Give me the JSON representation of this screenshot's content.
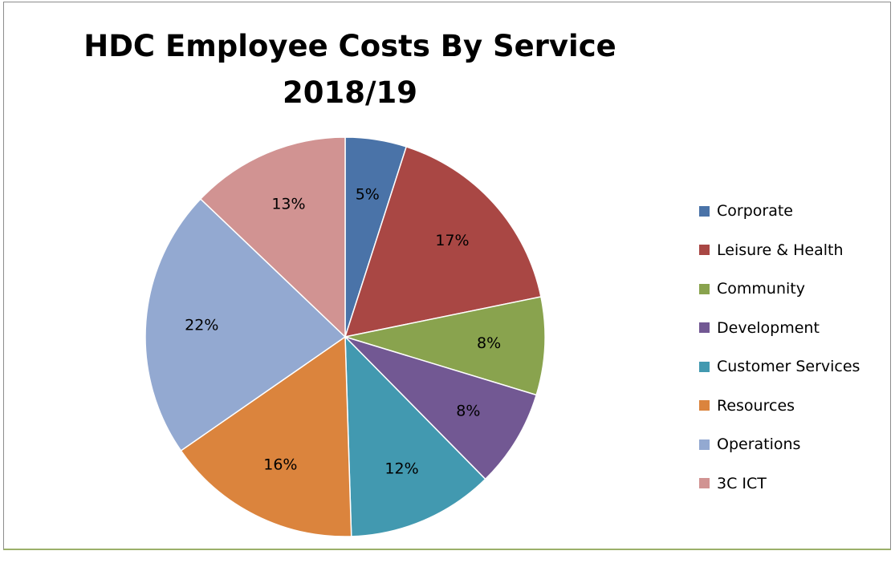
{
  "chart_data": {
    "type": "pie",
    "title_lines": [
      "HDC Employee Costs By Service",
      "2018/19"
    ],
    "categories": [
      "Corporate",
      "Leisure & Health",
      "Community",
      "Development",
      "Customer Services",
      "Resources",
      "Operations",
      "3C ICT"
    ],
    "values": [
      5,
      17,
      8,
      8,
      12,
      16,
      22,
      13
    ],
    "labels": [
      "5%",
      "17%",
      "8%",
      "8%",
      "12%",
      "16%",
      "22%",
      "13%"
    ],
    "colors": [
      "#4a73a8",
      "#a94744",
      "#89a34e",
      "#725893",
      "#4299b0",
      "#db843d",
      "#93a9d1",
      "#d19392"
    ],
    "legend_position": "right"
  }
}
